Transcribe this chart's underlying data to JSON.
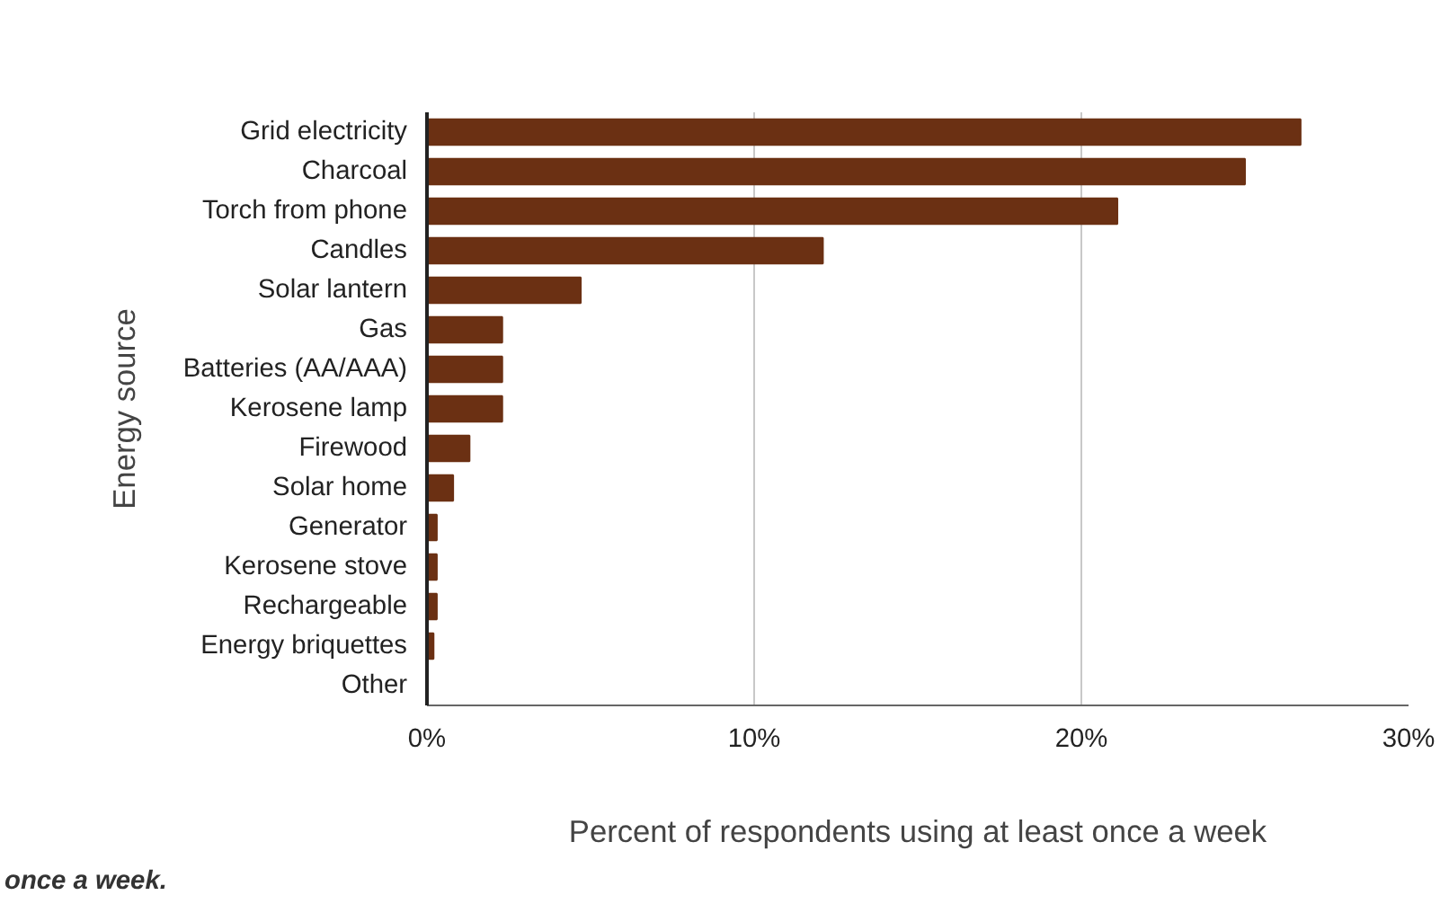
{
  "chart_data": {
    "type": "bar",
    "orientation": "horizontal",
    "ylabel": "Energy source",
    "xlabel": "Percent of respondents using at least once a week",
    "categories": [
      "Grid electricity",
      "Charcoal",
      "Torch from phone",
      "Candles",
      "Solar lantern",
      "Gas",
      "Batteries (AA/AAA)",
      "Kerosene lamp",
      "Firewood",
      "Solar home",
      "Generator",
      "Kerosene stove",
      "Rechargeable",
      "Energy briquettes",
      "Other"
    ],
    "values": [
      26.7,
      25.0,
      21.1,
      12.1,
      4.7,
      2.3,
      2.3,
      2.3,
      1.3,
      0.8,
      0.3,
      0.3,
      0.3,
      0.2,
      0
    ],
    "color": "#6b3013",
    "xlim": [
      0,
      30
    ],
    "xticks": [
      {
        "value": 0,
        "label": "0%"
      },
      {
        "value": 10,
        "label": "10%"
      },
      {
        "value": 20,
        "label": "20%"
      },
      {
        "value": 30,
        "label": "30%"
      }
    ],
    "grid": "x",
    "annotations": [
      "once a week."
    ]
  }
}
